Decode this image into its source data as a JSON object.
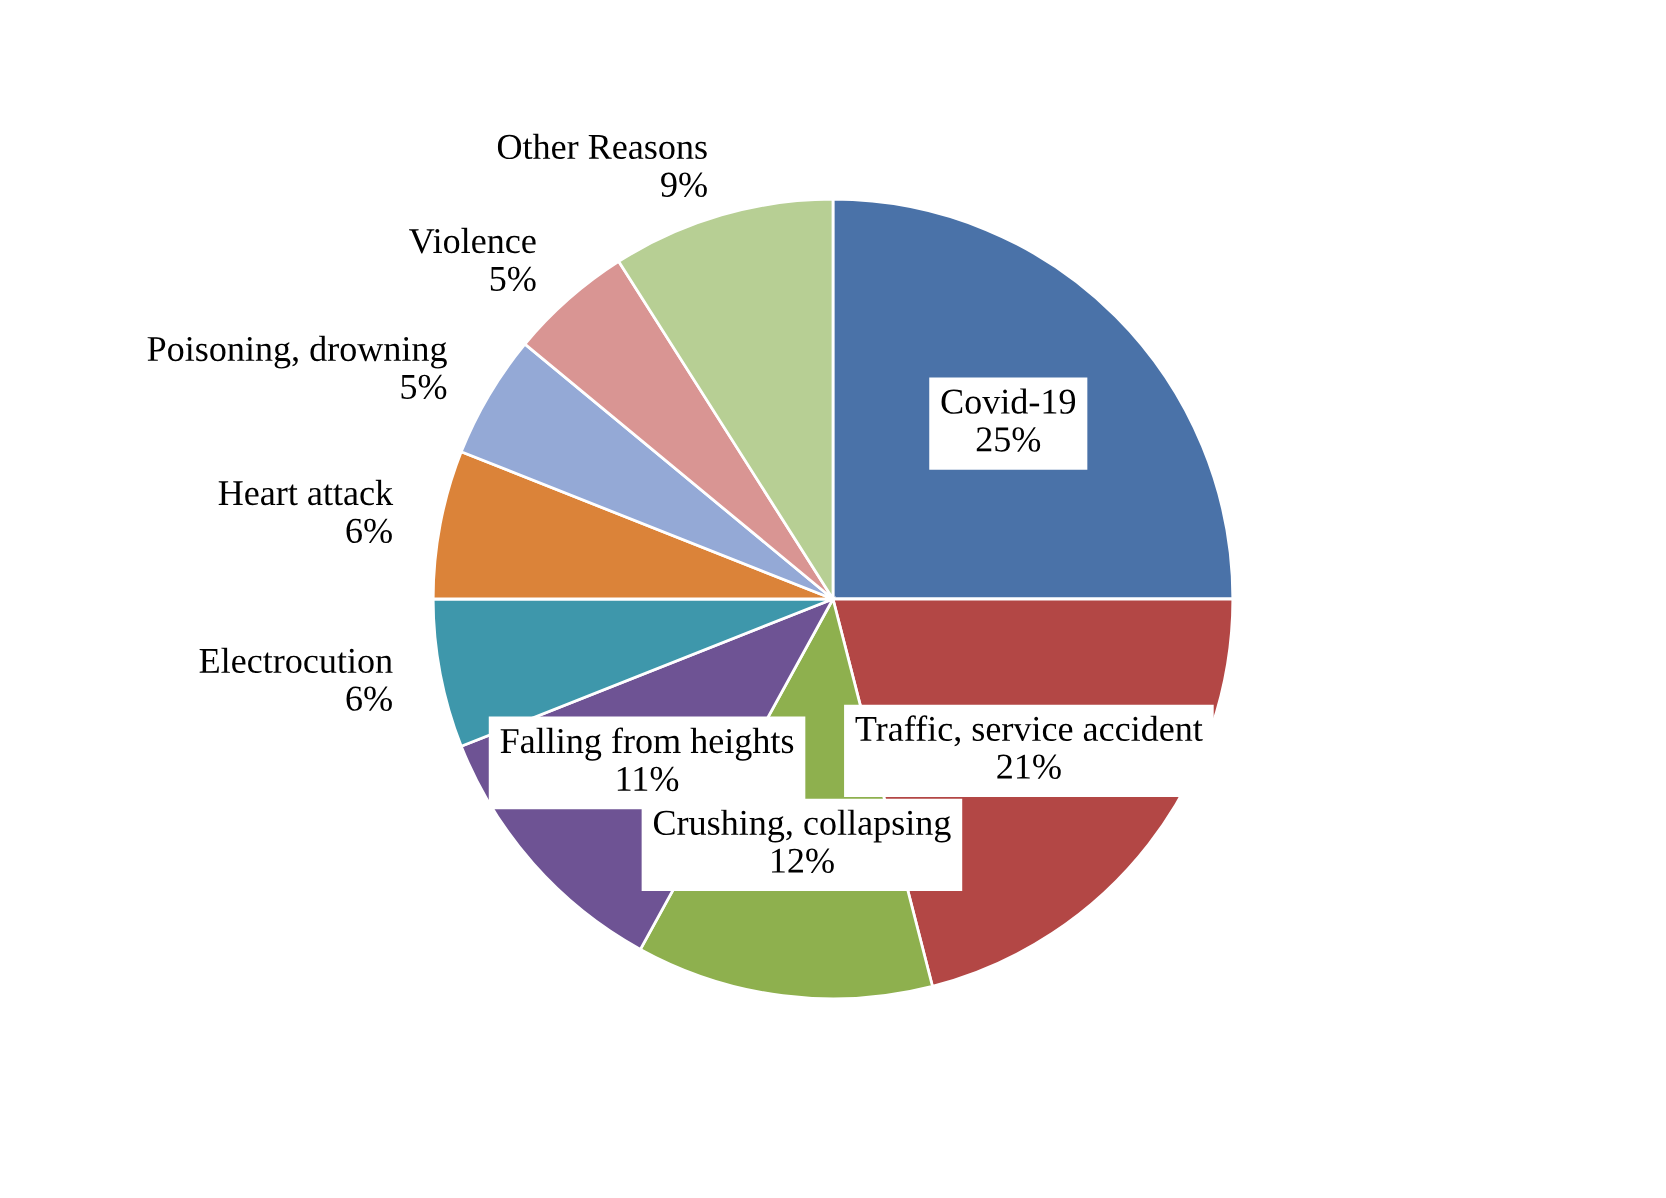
{
  "chart_data": {
    "type": "pie",
    "categories": [
      "Covid-19",
      "Traffic, service accident",
      "Crushing, collapsing",
      "Falling from heights",
      "Electrocution",
      "Heart attack",
      "Poisoning, drowning",
      "Violence",
      "Other Reasons"
    ],
    "values": [
      25,
      21,
      12,
      11,
      6,
      6,
      5,
      5,
      9
    ],
    "value_labels": [
      "25%",
      "21%",
      "12%",
      "11%",
      "6%",
      "6%",
      "5%",
      "5%",
      "9%"
    ],
    "colors": [
      "#4a72a8",
      "#b34745",
      "#8eb04e",
      "#6e5394",
      "#3e97ab",
      "#db8339",
      "#94a9d6",
      "#d99593",
      "#b7cf94"
    ],
    "legend": false
  }
}
